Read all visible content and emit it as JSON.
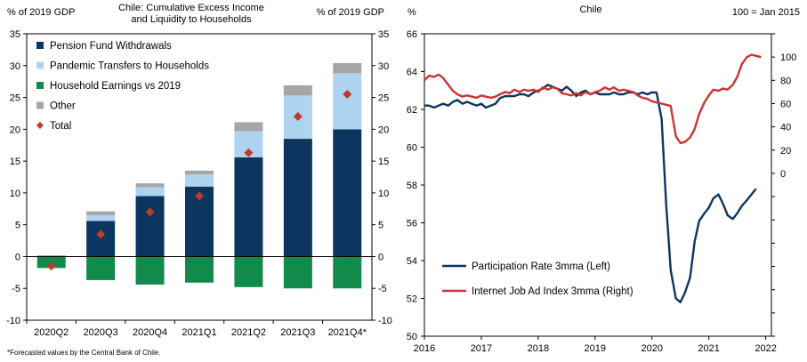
{
  "colors": {
    "pension": "#0c355f",
    "pandemic": "#aed3ef",
    "earnings": "#128a4c",
    "other": "#a6a6a6",
    "total": "#c0392b",
    "participation": "#0c355f",
    "jobads": "#cc3333"
  },
  "chart_data": [
    {
      "type": "bar",
      "stacked": true,
      "title": "Chile: Cumulative Excess Income and Liquidity to Households",
      "title_lines": [
        "Chile: Cumulative Excess Income",
        "and Liquidity to Households"
      ],
      "ylabel_left": "% of 2019 GDP",
      "ylabel_right": "% of 2019 GDP",
      "ylim": [
        -10,
        35
      ],
      "yticks": [
        -10,
        -5,
        0,
        5,
        10,
        15,
        20,
        25,
        30,
        35
      ],
      "categories": [
        "2020Q2",
        "2020Q3",
        "2020Q4",
        "2021Q1",
        "2021Q2",
        "2021Q3",
        "2021Q4*"
      ],
      "series": [
        {
          "name": "Pension Fund Withdrawals",
          "key": "pension",
          "values": [
            0,
            5.6,
            9.5,
            11.0,
            15.6,
            18.5,
            20.0
          ]
        },
        {
          "name": "Pandemic Transfers to Households",
          "key": "pandemic",
          "values": [
            0,
            0.9,
            1.4,
            1.9,
            4.1,
            6.8,
            8.8
          ]
        },
        {
          "name": "Household Earnings vs 2019",
          "key": "earnings",
          "values": [
            -1.8,
            -3.7,
            -4.4,
            -4.1,
            -4.8,
            -5.0,
            -5.0
          ]
        },
        {
          "name": "Other",
          "key": "other",
          "values": [
            0.2,
            0.6,
            0.6,
            0.6,
            1.4,
            1.6,
            1.6
          ]
        }
      ],
      "total": {
        "name": "Total",
        "values": [
          -1.5,
          3.5,
          7.0,
          9.5,
          16.3,
          22.0,
          25.5
        ]
      },
      "legend": "top-left",
      "footnote": "*Forecasted values by the Central Bank of Chile."
    },
    {
      "type": "line",
      "title": "Chile",
      "ylabel_left": "%",
      "ylabel_right": "100 = Jan 2015",
      "ylim_left": [
        50,
        66
      ],
      "yticks_left": [
        50,
        52,
        54,
        56,
        58,
        60,
        62,
        64,
        66
      ],
      "ylim_right": [
        -140,
        120
      ],
      "yticks_right": [
        0,
        20,
        40,
        60,
        80,
        100
      ],
      "xlim": [
        2016,
        2022.1
      ],
      "xticks": [
        2016,
        2017,
        2018,
        2019,
        2020,
        2021,
        2022
      ],
      "series": [
        {
          "name": "Participation Rate 3mma (Left)",
          "key": "participation",
          "axis": "left",
          "x": [
            2016.0,
            2016.08,
            2016.17,
            2016.25,
            2016.33,
            2016.42,
            2016.5,
            2016.58,
            2016.67,
            2016.75,
            2016.83,
            2016.92,
            2017.0,
            2017.08,
            2017.17,
            2017.25,
            2017.33,
            2017.42,
            2017.5,
            2017.58,
            2017.67,
            2017.75,
            2017.83,
            2017.92,
            2018.0,
            2018.08,
            2018.17,
            2018.25,
            2018.33,
            2018.42,
            2018.5,
            2018.58,
            2018.67,
            2018.75,
            2018.83,
            2018.92,
            2019.0,
            2019.08,
            2019.17,
            2019.25,
            2019.33,
            2019.42,
            2019.5,
            2019.58,
            2019.67,
            2019.75,
            2019.83,
            2019.92,
            2020.0,
            2020.08,
            2020.17,
            2020.25,
            2020.33,
            2020.42,
            2020.5,
            2020.58,
            2020.67,
            2020.75,
            2020.83,
            2020.92,
            2021.0,
            2021.08,
            2021.17,
            2021.25,
            2021.33,
            2021.42,
            2021.5,
            2021.58,
            2021.67,
            2021.75,
            2021.83
          ],
          "y": [
            62.2,
            62.2,
            62.1,
            62.2,
            62.3,
            62.2,
            62.4,
            62.5,
            62.3,
            62.4,
            62.3,
            62.2,
            62.3,
            62.1,
            62.2,
            62.3,
            62.6,
            62.7,
            62.7,
            62.7,
            62.8,
            62.8,
            62.7,
            62.9,
            63.0,
            63.1,
            63.3,
            63.2,
            63.1,
            63.0,
            63.2,
            63.0,
            62.7,
            62.9,
            63.0,
            62.8,
            62.9,
            62.8,
            62.8,
            62.8,
            62.9,
            62.8,
            62.8,
            62.9,
            62.9,
            62.8,
            62.9,
            62.8,
            62.9,
            62.9,
            61.5,
            57.0,
            53.5,
            52.0,
            51.8,
            52.3,
            53.1,
            55.0,
            56.1,
            56.5,
            56.8,
            57.3,
            57.5,
            57.0,
            56.4,
            56.2,
            56.5,
            56.9,
            57.2,
            57.5,
            57.8
          ]
        },
        {
          "name": "Internet Job Ad Index 3mma (Right)",
          "key": "jobads",
          "axis": "right",
          "x": [
            2016.0,
            2016.08,
            2016.17,
            2016.25,
            2016.33,
            2016.42,
            2016.5,
            2016.58,
            2016.67,
            2016.75,
            2016.83,
            2016.92,
            2017.0,
            2017.08,
            2017.17,
            2017.25,
            2017.33,
            2017.42,
            2017.5,
            2017.58,
            2017.67,
            2017.75,
            2017.83,
            2017.92,
            2018.0,
            2018.08,
            2018.17,
            2018.25,
            2018.33,
            2018.42,
            2018.5,
            2018.58,
            2018.67,
            2018.75,
            2018.83,
            2018.92,
            2019.0,
            2019.08,
            2019.17,
            2019.25,
            2019.33,
            2019.42,
            2019.5,
            2019.58,
            2019.67,
            2019.75,
            2019.83,
            2019.92,
            2020.0,
            2020.08,
            2020.17,
            2020.25,
            2020.33,
            2020.42,
            2020.5,
            2020.58,
            2020.67,
            2020.75,
            2020.83,
            2020.92,
            2021.0,
            2021.08,
            2021.17,
            2021.25,
            2021.33,
            2021.42,
            2021.5,
            2021.58,
            2021.67,
            2021.75,
            2021.83,
            2021.92
          ],
          "y": [
            80,
            84,
            83,
            85,
            82,
            76,
            71,
            68,
            66,
            67,
            66,
            65,
            67,
            66,
            65,
            66,
            68,
            70,
            69,
            72,
            70,
            72,
            71,
            72,
            70,
            74,
            72,
            74,
            73,
            69,
            68,
            67,
            69,
            67,
            70,
            68,
            70,
            71,
            74,
            72,
            74,
            71,
            72,
            71,
            70,
            67,
            65,
            64,
            62,
            61,
            60,
            59,
            58,
            32,
            26,
            27,
            31,
            38,
            51,
            61,
            67,
            72,
            71,
            73,
            72,
            76,
            83,
            94,
            100,
            102,
            101,
            100
          ]
        }
      ],
      "legend": "bottom-left"
    }
  ]
}
